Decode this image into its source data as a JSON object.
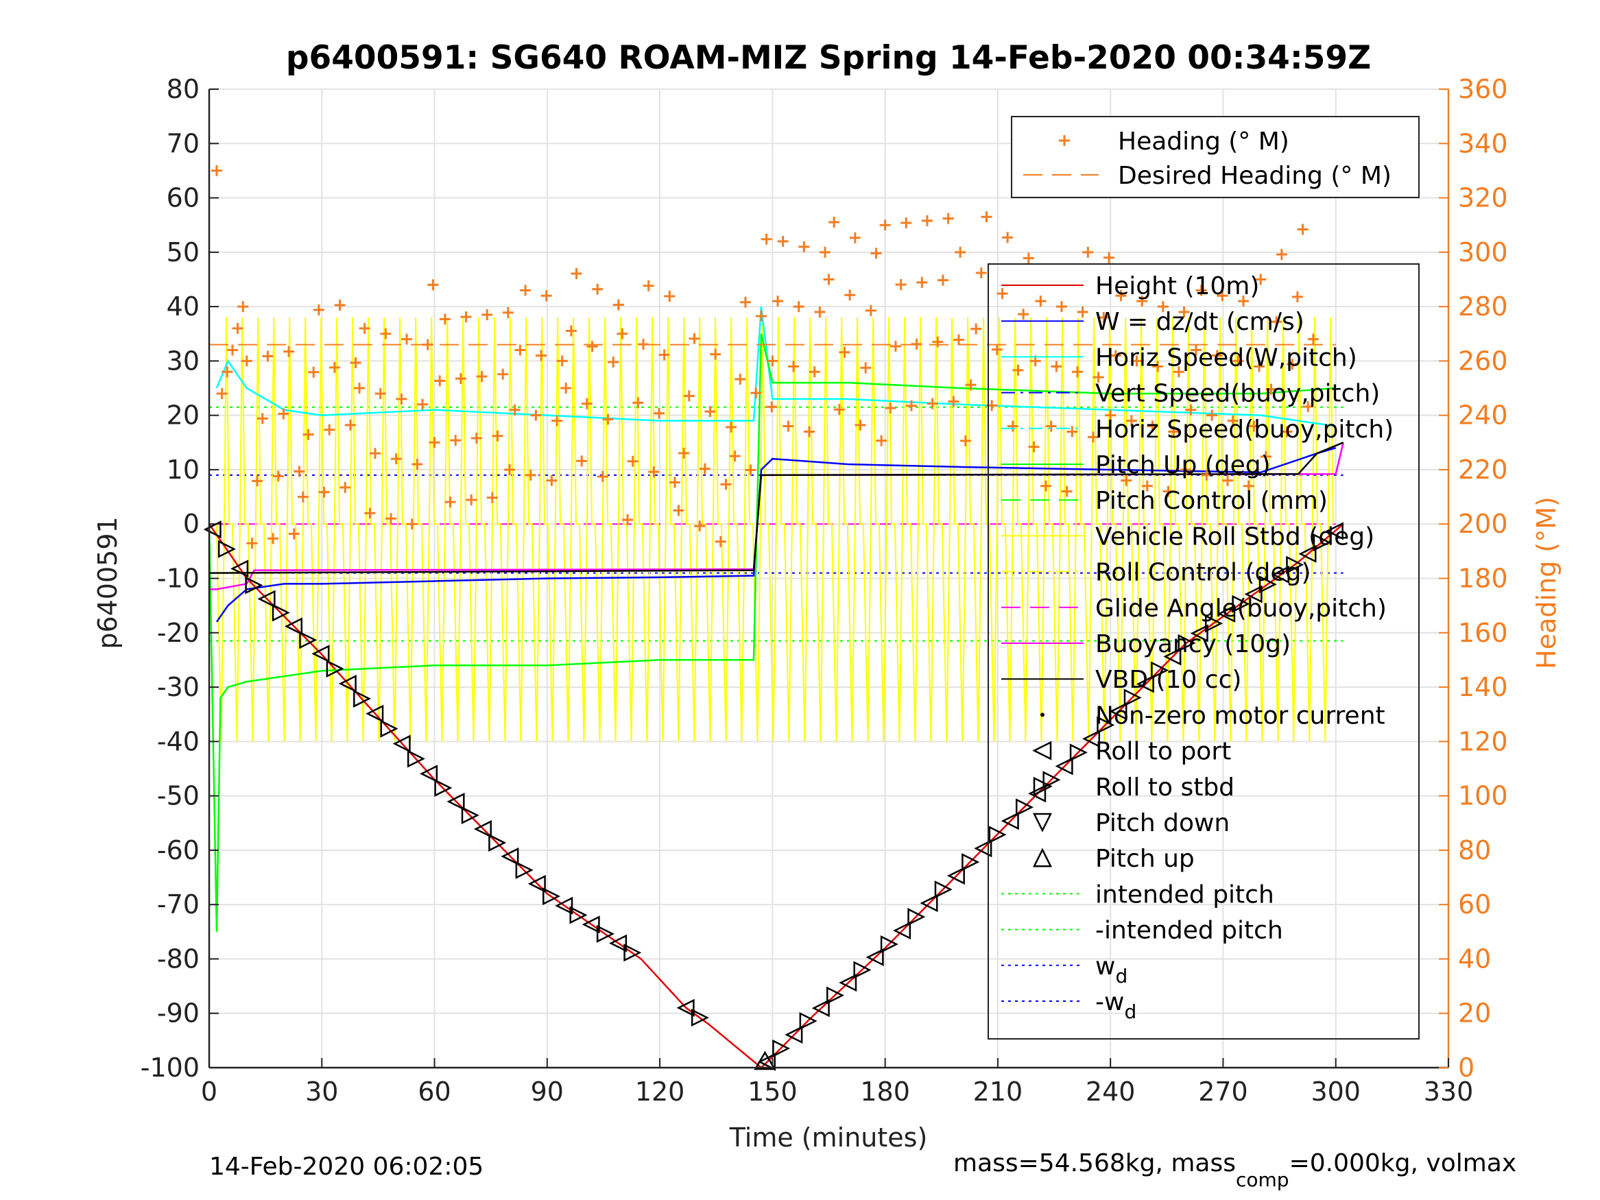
{
  "chart_data": {
    "type": "line",
    "title": "p6400591: SG640 ROAM-MIZ Spring 14-Feb-2020 00:34:59Z",
    "xlabel": "Time (minutes)",
    "ylabel": "p6400591",
    "y2label": "Heading (°M)",
    "xlim": [
      0,
      330
    ],
    "ylim": [
      -100,
      80
    ],
    "y2lim": [
      0,
      360
    ],
    "xticks": [
      "0",
      "30",
      "60",
      "90",
      "120",
      "150",
      "180",
      "210",
      "240",
      "270",
      "300",
      "330"
    ],
    "yticks": [
      "80",
      "70",
      "60",
      "50",
      "40",
      "30",
      "20",
      "10",
      "0",
      "-10",
      "-20",
      "-30",
      "-40",
      "-50",
      "-60",
      "-70",
      "-80",
      "-90",
      "-100"
    ],
    "y2ticks": [
      "360",
      "340",
      "320",
      "300",
      "280",
      "260",
      "240",
      "220",
      "200",
      "180",
      "160",
      "140",
      "120",
      "100",
      "80",
      "60",
      "40",
      "20",
      "0"
    ],
    "grid": true,
    "footer_left": "14-Feb-2020 06:02:05",
    "footer_right": {
      "a": "mass=54.568kg, mass",
      "sub": "comp",
      "b": "=0.000kg, volmax"
    },
    "legend_heading": [
      {
        "label": "Heading (° M)",
        "color": "#f47d20",
        "marker": "plus"
      },
      {
        "label": "Desired Heading (° M)",
        "color": "#f47d20",
        "style": "dashed"
      }
    ],
    "legend_main": [
      {
        "label": "Height (10m)",
        "color": "#e00000",
        "style": "solid"
      },
      {
        "label": "W = dz/dt (cm/s)",
        "color": "#0000ff",
        "style": "solid"
      },
      {
        "label": "Horiz Speed(W,pitch)",
        "color": "#00ffff",
        "style": "solid"
      },
      {
        "label": "Vert Speed(buoy,pitch)",
        "color": "#0000ff",
        "style": "dashdot"
      },
      {
        "label": "Horiz Speed(buoy,pitch)",
        "color": "#00ffff",
        "style": "dashdot"
      },
      {
        "label": "Pitch Up (deg)",
        "color": "#00ff00",
        "style": "solid"
      },
      {
        "label": "Pitch Control (mm)",
        "color": "#00ff00",
        "style": "dashed"
      },
      {
        "label": "Vehicle Roll Stbd (deg)",
        "color": "#ffff00",
        "style": "solid"
      },
      {
        "label": "Roll Control (deg)",
        "color": "#ffff00",
        "style": "dashdot"
      },
      {
        "label": "Glide Angle(buoy,pitch)",
        "color": "#ff00ff",
        "style": "dashed"
      },
      {
        "label": "Buoyancy (10g)",
        "color": "#ff00ff",
        "style": "solid"
      },
      {
        "label": "VBD (10 cc)",
        "color": "#000000",
        "style": "solid"
      },
      {
        "label": "Non-zero motor current",
        "color": "#000000",
        "marker": "dot"
      },
      {
        "label": "Roll to port",
        "color": "#000000",
        "marker": "triangle-left"
      },
      {
        "label": "Roll to stbd",
        "color": "#000000",
        "marker": "triangle-right"
      },
      {
        "label": "Pitch down",
        "color": "#000000",
        "marker": "triangle-down"
      },
      {
        "label": "Pitch up",
        "color": "#000000",
        "marker": "triangle-up"
      },
      {
        "label": "intended pitch",
        "color": "#00ff00",
        "style": "dotted"
      },
      {
        "label": "-intended pitch",
        "color": "#00ff00",
        "style": "dotted"
      },
      {
        "label": "w",
        "sub": "d",
        "color": "#0000ff",
        "style": "dotted"
      },
      {
        "label": "-w",
        "sub": "d",
        "color": "#0000ff",
        "style": "dotted"
      }
    ],
    "reference_lines": {
      "intended_pitch": 21.5,
      "wd": 9
    },
    "series": [
      {
        "name": "Height (10m)",
        "color": "#e00000",
        "x": [
          0,
          10,
          30,
          60,
          90,
          115,
          127,
          133,
          147,
          150,
          160,
          180,
          200,
          230,
          260,
          290,
          302
        ],
        "y": [
          0,
          -10,
          -24,
          -47,
          -68,
          -80,
          -89,
          -92,
          -100,
          -98,
          -91,
          -78,
          -64,
          -43,
          -22,
          -7,
          0
        ]
      },
      {
        "name": "W = dz/dt (cm/s)",
        "color": "#0000ff",
        "x": [
          2,
          5,
          10,
          20,
          30,
          60,
          90,
          120,
          145,
          147,
          150,
          170,
          200,
          240,
          280,
          295,
          300
        ],
        "y": [
          -18,
          -15,
          -12,
          -11,
          -11,
          -10.5,
          -10,
          -9.8,
          -9.5,
          10,
          12,
          11,
          10.5,
          10,
          9.5,
          13,
          14
        ]
      },
      {
        "name": "Horiz Speed(W,pitch)",
        "color": "#00ffff",
        "x": [
          2,
          5,
          10,
          20,
          30,
          60,
          90,
          120,
          145,
          147,
          150,
          170,
          200,
          240,
          280,
          300
        ],
        "y": [
          25,
          30,
          25,
          21,
          20,
          21,
          20,
          19,
          19,
          40,
          23,
          23,
          22,
          21,
          20,
          18
        ]
      },
      {
        "name": "Pitch Up (deg)",
        "color": "#00ff00",
        "x": [
          0,
          2,
          3,
          5,
          10,
          20,
          30,
          60,
          90,
          120,
          145,
          147,
          150,
          170,
          200,
          240,
          280,
          300
        ],
        "y": [
          0,
          -75,
          -32,
          -30,
          -29,
          -28,
          -27,
          -26,
          -26,
          -25,
          -25,
          35,
          26,
          26,
          25,
          24,
          24,
          25
        ]
      },
      {
        "name": "Buoyancy (10g)",
        "color": "#ff00ff",
        "x": [
          0,
          2,
          10,
          12,
          145,
          147,
          300,
          302
        ],
        "y": [
          -12,
          -12,
          -11,
          -8.5,
          -8.3,
          9,
          9.2,
          15
        ]
      },
      {
        "name": "VBD (10 cc)",
        "color": "#000000",
        "x": [
          0,
          2,
          145,
          147,
          290,
          295,
          302
        ],
        "y": [
          -9,
          -9,
          -8.5,
          9,
          9.2,
          13,
          15
        ]
      },
      {
        "name": "Vehicle Roll Stbd (deg)",
        "color": "#ffff00",
        "x": [
          0,
          300
        ],
        "y": [
          0,
          0
        ]
      },
      {
        "name": "Heading (° M)",
        "color": "#f47d20",
        "axis": "right",
        "x": [
          2,
          10,
          25,
          40,
          60,
          80,
          95,
          110,
          125,
          140,
          150,
          165,
          180,
          200,
          220,
          240,
          260,
          280,
          295
        ],
        "y": [
          350,
          270,
          280,
          290,
          290,
          300,
          300,
          290,
          285,
          275,
          320,
          320,
          310,
          320,
          300,
          300,
          300,
          300,
          330
        ]
      },
      {
        "name": "Desired Heading (° M)",
        "color": "#f47d20",
        "axis": "right",
        "x": [
          0,
          300
        ],
        "y": [
          266,
          266
        ]
      }
    ]
  }
}
